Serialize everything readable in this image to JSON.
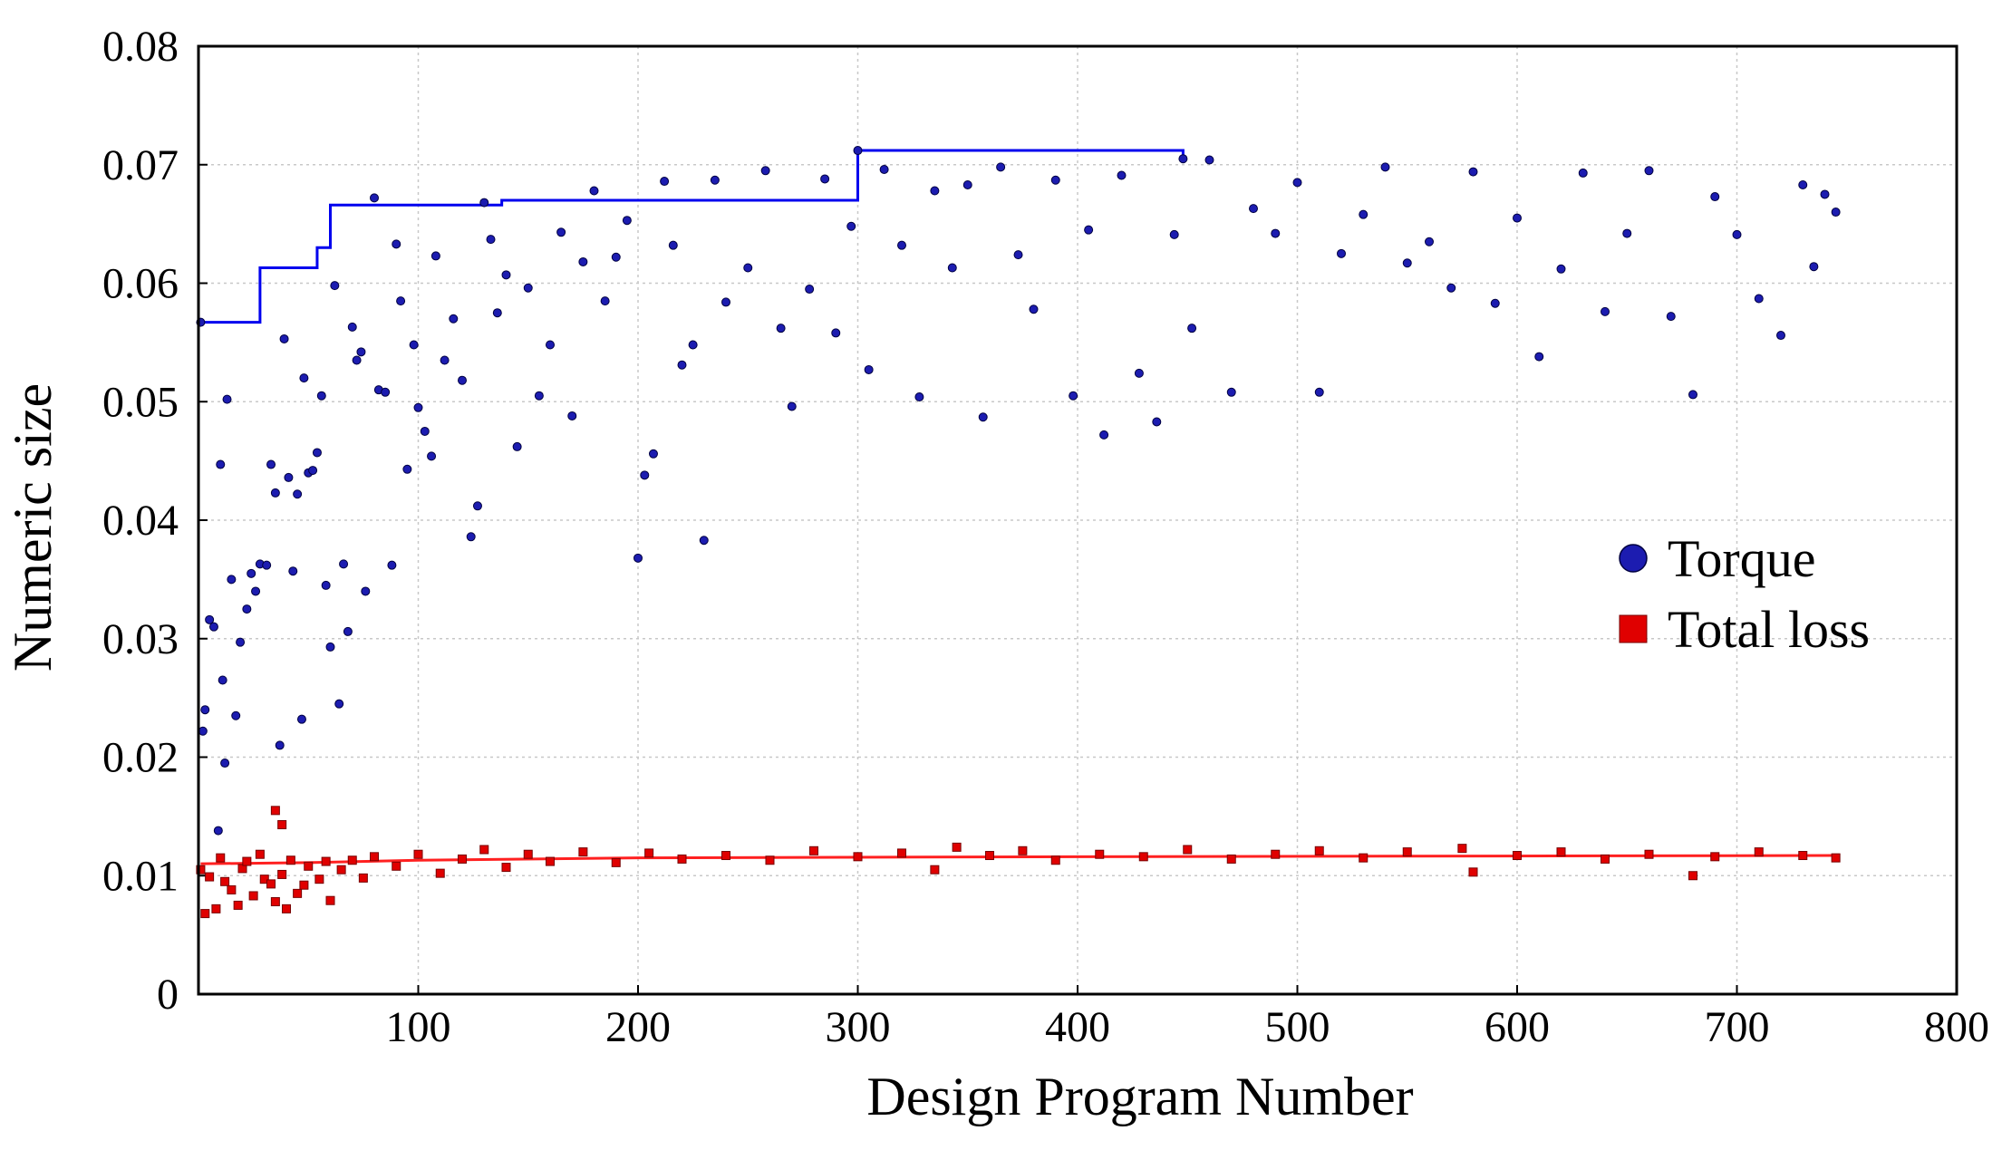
{
  "chart_data": {
    "type": "scatter",
    "x_label": "Design Program Number",
    "y_label": "Numeric size",
    "xlim": [
      0,
      800
    ],
    "ylim": [
      0,
      0.08
    ],
    "xticks": [
      100,
      200,
      300,
      400,
      500,
      600,
      700,
      800
    ],
    "yticks": [
      0,
      0.01,
      0.02,
      0.03,
      0.04,
      0.05,
      0.06,
      0.07,
      0.08
    ],
    "grid": true,
    "legend": "right",
    "series": [
      {
        "name": "Torque",
        "color": "#1c1cb0",
        "marker": "circle",
        "x": [
          1,
          2,
          3,
          5,
          7,
          9,
          10,
          11,
          12,
          13,
          15,
          17,
          19,
          22,
          24,
          26,
          28,
          31,
          33,
          35,
          37,
          39,
          41,
          43,
          45,
          47,
          48,
          50,
          52,
          54,
          56,
          58,
          60,
          62,
          64,
          66,
          68,
          70,
          72,
          74,
          76,
          80,
          82,
          85,
          88,
          90,
          92,
          95,
          98,
          100,
          103,
          106,
          108,
          112,
          116,
          120,
          124,
          127,
          130,
          133,
          136,
          140,
          145,
          150,
          155,
          160,
          165,
          170,
          175,
          180,
          185,
          190,
          195,
          200,
          203,
          207,
          212,
          216,
          220,
          225,
          230,
          235,
          240,
          250,
          258,
          265,
          270,
          278,
          285,
          290,
          297,
          300,
          305,
          312,
          320,
          328,
          335,
          343,
          350,
          357,
          365,
          373,
          380,
          390,
          398,
          405,
          412,
          420,
          428,
          436,
          444,
          448,
          452,
          460,
          470,
          480,
          490,
          500,
          510,
          520,
          530,
          540,
          550,
          560,
          570,
          580,
          590,
          600,
          610,
          620,
          630,
          640,
          650,
          660,
          670,
          680,
          690,
          700,
          710,
          720,
          730,
          735,
          740,
          745
        ],
        "values": [
          0.0567,
          0.0222,
          0.024,
          0.0316,
          0.031,
          0.0138,
          0.0447,
          0.0265,
          0.0195,
          0.0502,
          0.035,
          0.0235,
          0.0297,
          0.0325,
          0.0355,
          0.034,
          0.0363,
          0.0362,
          0.0447,
          0.0423,
          0.021,
          0.0553,
          0.0436,
          0.0357,
          0.0422,
          0.0232,
          0.052,
          0.044,
          0.0442,
          0.0457,
          0.0505,
          0.0345,
          0.0293,
          0.0598,
          0.0245,
          0.0363,
          0.0306,
          0.0563,
          0.0535,
          0.0542,
          0.034,
          0.0672,
          0.051,
          0.0508,
          0.0362,
          0.0633,
          0.0585,
          0.0443,
          0.0548,
          0.0495,
          0.0475,
          0.0454,
          0.0623,
          0.0535,
          0.057,
          0.0518,
          0.0386,
          0.0412,
          0.0668,
          0.0637,
          0.0575,
          0.0607,
          0.0462,
          0.0596,
          0.0505,
          0.0548,
          0.0643,
          0.0488,
          0.0618,
          0.0678,
          0.0585,
          0.0622,
          0.0653,
          0.0368,
          0.0438,
          0.0456,
          0.0686,
          0.0632,
          0.0531,
          0.0548,
          0.0383,
          0.0687,
          0.0584,
          0.0613,
          0.0695,
          0.0562,
          0.0496,
          0.0595,
          0.0688,
          0.0558,
          0.0648,
          0.0712,
          0.0527,
          0.0696,
          0.0632,
          0.0504,
          0.0678,
          0.0613,
          0.0683,
          0.0487,
          0.0698,
          0.0624,
          0.0578,
          0.0687,
          0.0505,
          0.0645,
          0.0472,
          0.0691,
          0.0524,
          0.0483,
          0.0641,
          0.0705,
          0.0562,
          0.0704,
          0.0508,
          0.0663,
          0.0642,
          0.0685,
          0.0508,
          0.0625,
          0.0658,
          0.0698,
          0.0617,
          0.0635,
          0.0596,
          0.0694,
          0.0583,
          0.0655,
          0.0538,
          0.0612,
          0.0693,
          0.0576,
          0.0642,
          0.0695,
          0.0572,
          0.0506,
          0.0673,
          0.0641,
          0.0587,
          0.0556,
          0.0683,
          0.0614,
          0.0675,
          0.066
        ]
      },
      {
        "name": "Total loss",
        "color": "#e00000",
        "marker": "square",
        "x": [
          1,
          3,
          5,
          8,
          10,
          12,
          15,
          18,
          20,
          22,
          25,
          28,
          30,
          33,
          35,
          35,
          38,
          38,
          40,
          42,
          45,
          48,
          50,
          55,
          58,
          60,
          65,
          70,
          75,
          80,
          90,
          100,
          110,
          120,
          130,
          140,
          150,
          160,
          175,
          190,
          205,
          220,
          240,
          260,
          280,
          300,
          320,
          335,
          345,
          360,
          375,
          390,
          410,
          430,
          450,
          470,
          490,
          510,
          530,
          550,
          575,
          580,
          600,
          620,
          640,
          660,
          680,
          690,
          710,
          730,
          745
        ],
        "values": [
          0.0105,
          0.0068,
          0.0099,
          0.0072,
          0.0115,
          0.0095,
          0.0088,
          0.0075,
          0.0106,
          0.0112,
          0.0083,
          0.0118,
          0.0097,
          0.0093,
          0.0078,
          0.0155,
          0.0101,
          0.0143,
          0.0072,
          0.0113,
          0.0085,
          0.0092,
          0.0108,
          0.0097,
          0.0112,
          0.0079,
          0.0105,
          0.0113,
          0.0098,
          0.0116,
          0.0108,
          0.0118,
          0.0102,
          0.0114,
          0.0122,
          0.0107,
          0.0118,
          0.0112,
          0.012,
          0.0111,
          0.0119,
          0.0114,
          0.0117,
          0.0113,
          0.0121,
          0.0116,
          0.0119,
          0.0105,
          0.0124,
          0.0117,
          0.0121,
          0.0113,
          0.0118,
          0.0116,
          0.0122,
          0.0114,
          0.0118,
          0.0121,
          0.0115,
          0.012,
          0.0123,
          0.0103,
          0.0117,
          0.012,
          0.0114,
          0.0118,
          0.01,
          0.0116,
          0.012,
          0.0117,
          0.0115
        ]
      }
    ],
    "lines": [
      {
        "color": "#0000ee",
        "x": [
          1,
          28,
          28,
          54,
          54,
          60,
          60,
          138,
          138,
          300,
          300,
          448,
          448
        ],
        "y": [
          0.0567,
          0.0567,
          0.0613,
          0.0613,
          0.063,
          0.063,
          0.0666,
          0.0666,
          0.067,
          0.067,
          0.0712,
          0.0712,
          0.0705
        ]
      },
      {
        "color": "#ff2020",
        "x": [
          1,
          50,
          100,
          200,
          400,
          745
        ],
        "y": [
          0.011,
          0.0111,
          0.0113,
          0.0115,
          0.0116,
          0.0117
        ]
      }
    ]
  }
}
